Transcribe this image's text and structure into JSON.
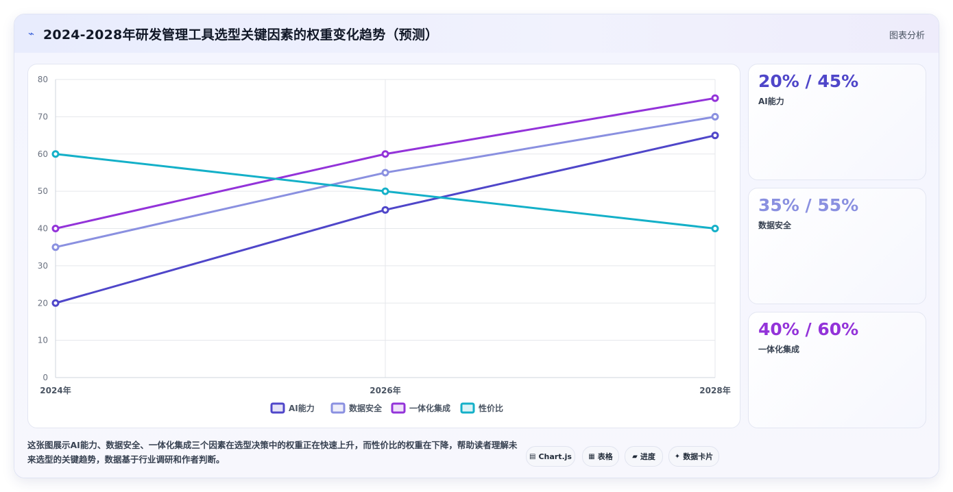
{
  "header": {
    "icon": "⌁",
    "title": "2024-2028年研发管理工具选型关键因素的权重变化趋势（预测）",
    "action_label": "图表分析"
  },
  "chart_data": {
    "type": "line",
    "categories": [
      "2024年",
      "2026年",
      "2028年"
    ],
    "ylim": [
      0,
      80
    ],
    "yticks": [
      0,
      10,
      20,
      30,
      40,
      50,
      60,
      70,
      80
    ],
    "grid": true,
    "legend_position": "bottom",
    "series": [
      {
        "name": "AI能力",
        "values": [
          20,
          45,
          65
        ],
        "color": "#4f46c9"
      },
      {
        "name": "数据安全",
        "values": [
          35,
          55,
          70
        ],
        "color": "#8a90e0"
      },
      {
        "name": "一体化集成",
        "values": [
          40,
          60,
          75
        ],
        "color": "#9333d9"
      },
      {
        "name": "性价比",
        "values": [
          60,
          50,
          40
        ],
        "color": "#14b0c8"
      }
    ]
  },
  "stats": [
    {
      "value": "20% / 45%",
      "label": "AI能力",
      "color": "#4f46c9"
    },
    {
      "value": "35% / 55%",
      "label": "数据安全",
      "color": "#8a90e0"
    },
    {
      "value": "40% / 60%",
      "label": "一体化集成",
      "color": "#9333d9"
    }
  ],
  "description": "这张图展示AI能力、数据安全、一体化集成三个因素在选型决策中的权重正在快速上升，而性价比的权重在下降，帮助读者理解未来选型的关键趋势，数据基于行业调研和作者判断。",
  "toolbar": [
    {
      "icon": "▤",
      "label": "Chart.js"
    },
    {
      "icon": "▦",
      "label": "表格"
    },
    {
      "icon": "▰",
      "label": "进度"
    },
    {
      "icon": "✦",
      "label": "数据卡片"
    }
  ]
}
